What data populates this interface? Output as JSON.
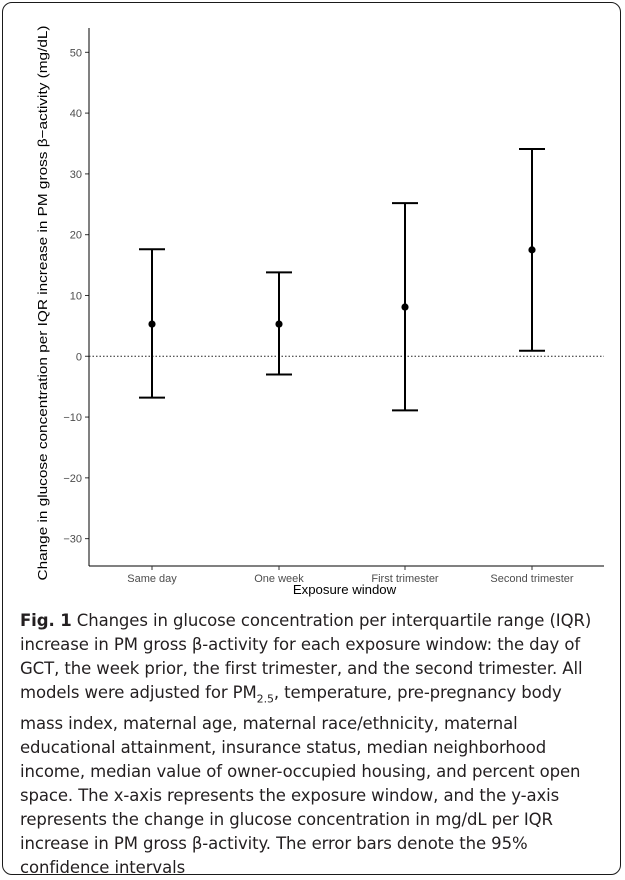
{
  "chart_data": {
    "type": "scatter",
    "subtype": "point-with-error-bars",
    "categories": [
      "Same day",
      "One week",
      "First trimester",
      "Second trimester"
    ],
    "values": [
      5.3,
      5.3,
      8.1,
      17.5
    ],
    "ci_lower": [
      -6.8,
      -3.0,
      -8.9,
      0.9
    ],
    "ci_upper": [
      17.6,
      13.8,
      25.2,
      34.1
    ],
    "xlabel": "Exposure window",
    "ylabel": "Change in glucose concentration per IQR increase in PM gross β−activity (mg/dL)",
    "ylim": [
      -34.5,
      54
    ],
    "yticks": [
      -30,
      -20,
      -10,
      0,
      10,
      20,
      30,
      40,
      50
    ],
    "ytick_labels": [
      "−30",
      "−20",
      "−10",
      "0",
      "10",
      "20",
      "30",
      "40",
      "50"
    ],
    "reference_line": {
      "y": 0,
      "style": "dotted"
    },
    "grid": false,
    "legend": "none"
  },
  "caption": {
    "label": "Fig. 1",
    "text_part1": " Changes in glucose concentration per interquartile range (IQR) increase in PM gross β-activity for each exposure window: the day of GCT, the week prior, the first trimester, and the second trimester. All models were adjusted for PM",
    "subscript": "2.5",
    "text_part2": ", temperature, pre-pregnancy body mass index, maternal age, maternal race/ethnicity, maternal educational attainment, insurance status, median neighborhood income, median value of owner-occupied housing, and percent open space. The x-axis represents the exposure window, and the y-axis represents the change in glucose concentration in mg/dL per IQR increase in PM gross β-activity. The error bars denote the 95% confidence intervals"
  }
}
